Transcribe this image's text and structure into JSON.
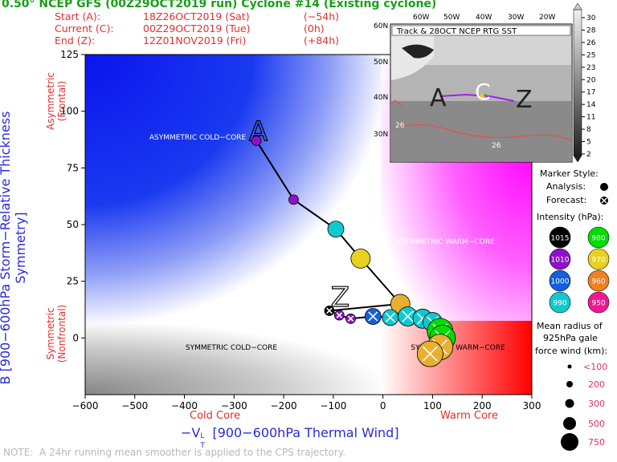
{
  "header": {
    "title": "0.50° NCEP GFS (00Z29OCT2019 run) Cyclone #14 (Existing cyclone)",
    "start_label": "Start (A):",
    "start_time": "18Z26OCT2019 (Sat)",
    "start_offset": "(−54h)",
    "current_label": "Current (C):",
    "current_time": "00Z29OCT2019 (Tue)",
    "current_offset": "(0h)",
    "end_label": "End (Z):",
    "end_time": "12Z01NOV2019 (Fri)",
    "end_offset": "(+84h)"
  },
  "axes": {
    "ylabel": "B [900−600hPa Storm−Relative Thickness Symmetry]",
    "y_top_note": "Asymmetric (Frontal)",
    "y_bottom_note": "Symmetric (Nonfrontal)",
    "xlabel": "−V",
    "xlabel_sup": "L",
    "xlabel_sub": "T",
    "xlabel_rest": " [900−600hPa Thermal Wind]",
    "x_left_note": "Cold Core",
    "x_right_note": "Warm Core"
  },
  "quadrants": {
    "asym_cold": "ASYMMETRIC COLD−CORE",
    "asym_warm": "ASYMMETRIC WARM−CORE",
    "sym_cold": "SYMMETRIC COLD−CORE",
    "sym_warm": "SYMMETRIC WARM−CORE"
  },
  "note": "NOTE:  A 24hr running mean smoother is applied to the CPS trajectory.",
  "map_inset": {
    "title": "Track & 28OCT NCEP RTG SST",
    "lon_labels": [
      "60W",
      "50W",
      "40W",
      "30W",
      "20W"
    ],
    "lat_labels": [
      "60N",
      "50N",
      "40N",
      "30N"
    ],
    "contour_labels": [
      "26",
      "26"
    ],
    "track_letters": [
      "A",
      "C",
      "Z"
    ],
    "colorbar_ticks": [
      "30",
      "28",
      "26",
      "25",
      "23",
      "20",
      "17",
      "14",
      "11",
      "8",
      "5",
      "2"
    ]
  },
  "legend": {
    "marker_style_title": "Marker Style:",
    "analysis_label": "Analysis:",
    "forecast_label": "Forecast:",
    "intensity_title": "Intensity (hPa):",
    "intensity_items": [
      {
        "label": "1015",
        "color": "#000000",
        "text_color": "#ffffff"
      },
      {
        "label": "980",
        "color": "#00dd00",
        "text_color": "#ffffff"
      },
      {
        "label": "1010",
        "color": "#9010c8",
        "text_color": "#ffffff"
      },
      {
        "label": "970",
        "color": "#e8d020",
        "text_color": "#ffffff"
      },
      {
        "label": "1000",
        "color": "#1060e0",
        "text_color": "#ffffff"
      },
      {
        "label": "960",
        "color": "#f08020",
        "text_color": "#ffffff"
      },
      {
        "label": "990",
        "color": "#10c8d0",
        "text_color": "#ffffff"
      },
      {
        "label": "950",
        "color": "#f01890",
        "text_color": "#ffffff"
      }
    ],
    "radius_title_1": "Mean radius of",
    "radius_title_2": "925hPa gale",
    "radius_title_3": "force wind (km):",
    "radius_items": [
      "<100",
      "200",
      "300",
      "500",
      "750"
    ]
  },
  "chart_data": {
    "type": "scatter",
    "title": "0.50° NCEP GFS (00Z29OCT2019 run) Cyclone #14 (Existing cyclone)",
    "xlabel": "−VTL [900−600hPa Thermal Wind]",
    "ylabel": "B [900−600hPa Storm−Relative Thickness Symmetry]",
    "xlim": [
      -600,
      300
    ],
    "ylim": [
      -25,
      125
    ],
    "xticks": [
      -600,
      -500,
      -400,
      -300,
      -200,
      -100,
      0,
      100,
      200,
      300
    ],
    "yticks": [
      0,
      25,
      50,
      75,
      100,
      125
    ],
    "grid": false,
    "series": [
      {
        "name": "Analysis",
        "marker": "filled",
        "points": [
          {
            "x": -255,
            "y": 87,
            "color": "#9010c8",
            "size": "<100"
          },
          {
            "x": -180,
            "y": 61,
            "color": "#9010c8",
            "size": "<100"
          },
          {
            "x": -95,
            "y": 48,
            "color": "#10c8d0",
            "size": "200"
          },
          {
            "x": -45,
            "y": 35,
            "color": "#e8d020",
            "size": "300"
          },
          {
            "x": 35,
            "y": 15,
            "color": "#e8b030",
            "size": "300"
          }
        ]
      },
      {
        "name": "Forecast",
        "marker": "cross",
        "points": [
          {
            "x": -108,
            "y": 12,
            "color": "#000000",
            "size": "<100"
          },
          {
            "x": -88,
            "y": 10,
            "color": "#9010c8",
            "size": "<100"
          },
          {
            "x": -65,
            "y": 8.5,
            "color": "#9010c8",
            "size": "<100"
          },
          {
            "x": -20,
            "y": 9.5,
            "color": "#1060e0",
            "size": "200"
          },
          {
            "x": 15,
            "y": 9,
            "color": "#10c8d0",
            "size": "200"
          },
          {
            "x": 50,
            "y": 9.5,
            "color": "#10c8d0",
            "size": "300"
          },
          {
            "x": 80,
            "y": 8.5,
            "color": "#10c8d0",
            "size": "300"
          },
          {
            "x": 100,
            "y": 7,
            "color": "#10c8d0",
            "size": "300"
          },
          {
            "x": 115,
            "y": 3,
            "color": "#00dd00",
            "size": "500"
          },
          {
            "x": 120,
            "y": 0,
            "color": "#00dd00",
            "size": "500"
          },
          {
            "x": 115,
            "y": -4,
            "color": "#e8b030",
            "size": "500"
          },
          {
            "x": 95,
            "y": -7,
            "color": "#e8b030",
            "size": "500"
          }
        ]
      }
    ],
    "track_labels": [
      {
        "text": "A",
        "x": -270,
        "y": 87
      },
      {
        "text": "Z",
        "x": -105,
        "y": 14
      }
    ]
  }
}
